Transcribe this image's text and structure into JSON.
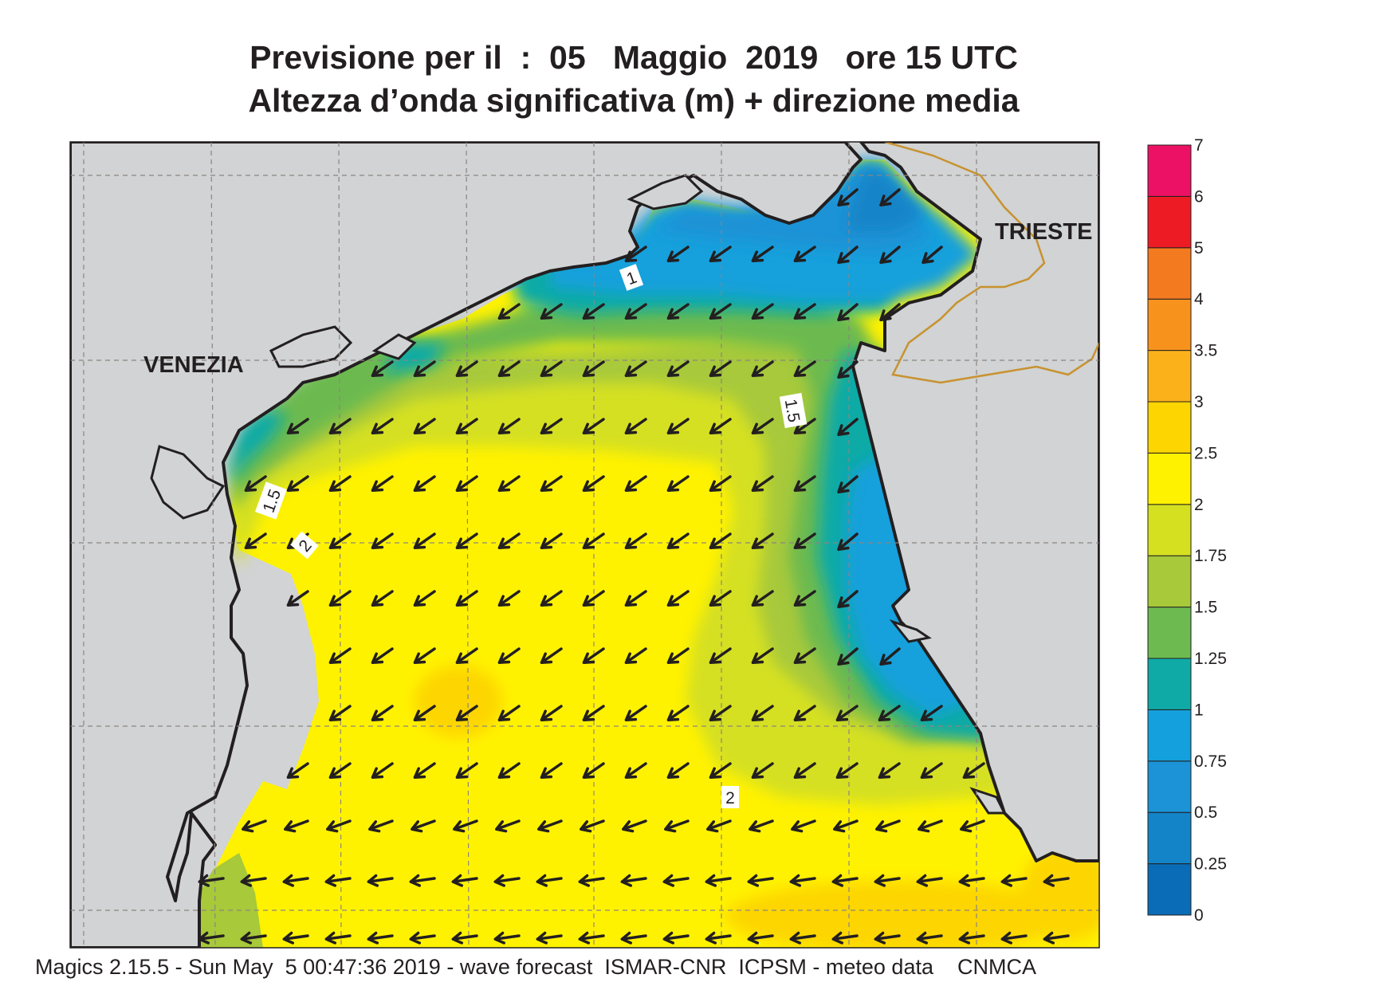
{
  "title_line1": "Previsione per il  :  05   Maggio  2019   ore 15 UTC",
  "title_line2": "Altezza d’onda significativa (m) + direzione media",
  "cities": [
    {
      "name": "VENEZIA"
    },
    {
      "name": "TRIESTE"
    }
  ],
  "contour_labels": [
    "1",
    "1.5",
    "1.5",
    "2",
    "2"
  ],
  "legend": {
    "labels": [
      "0",
      "0.25",
      "0.5",
      "0.75",
      "1",
      "1.25",
      "1.5",
      "1.75",
      "2",
      "2.5",
      "3",
      "3.5",
      "4",
      "5",
      "6",
      "7"
    ],
    "colors": [
      "#0a6cb6",
      "#1384c8",
      "#1b93d6",
      "#14a0dc",
      "#10aaa6",
      "#6cba50",
      "#a7c93a",
      "#d5e021",
      "#fff200",
      "#fdd500",
      "#fbb21a",
      "#f7931d",
      "#f47a20",
      "#ed1c24",
      "#ec1164"
    ]
  },
  "footer": "Magics 2.15.5 - Sun May  5 00:47:36 2019 - wave forecast  ISMAR-CNR  ICPSM - meteo data    CNMCA",
  "colors": {
    "land": "#d1d3d4",
    "coast": "#231f20",
    "border": "#c8922f",
    "grid": "#8c8580",
    "arrow": "#231f20"
  }
}
